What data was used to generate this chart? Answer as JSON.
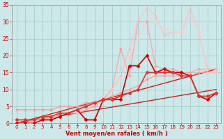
{
  "title": "",
  "xlabel": "Vent moyen/en rafales ( km/h )",
  "ylabel": "",
  "xlim": [
    -0.5,
    23.5
  ],
  "ylim": [
    0,
    35
  ],
  "xticks": [
    0,
    1,
    2,
    3,
    4,
    5,
    6,
    7,
    8,
    9,
    10,
    11,
    12,
    13,
    14,
    15,
    16,
    17,
    18,
    19,
    20,
    21,
    22,
    23
  ],
  "yticks": [
    0,
    5,
    10,
    15,
    20,
    25,
    30,
    35
  ],
  "bg_color": "#cce8e8",
  "grid_color": "#aacccc",
  "label_color": "#cc0000",
  "lines": [
    {
      "x": [
        0,
        23
      ],
      "y": [
        0,
        10
      ],
      "color": "#cc2222",
      "alpha": 1.0,
      "lw": 1.0,
      "marker": null
    },
    {
      "x": [
        0,
        23
      ],
      "y": [
        0,
        16
      ],
      "color": "#cc2222",
      "alpha": 1.0,
      "lw": 1.0,
      "marker": null
    },
    {
      "x": [
        0,
        1,
        2,
        3,
        4,
        5,
        6,
        7,
        8,
        9,
        10,
        11,
        12,
        13,
        14,
        15,
        16,
        17,
        18,
        19,
        20,
        21,
        22,
        23
      ],
      "y": [
        4,
        4,
        4,
        4,
        4,
        5,
        5,
        5,
        6,
        6,
        7,
        8,
        9,
        10,
        11,
        13,
        14,
        14,
        14,
        14,
        14,
        15,
        15,
        15
      ],
      "color": "#ff9999",
      "alpha": 0.9,
      "lw": 1.0,
      "marker": "D",
      "ms": 2.0
    },
    {
      "x": [
        0,
        1,
        2,
        3,
        4,
        5,
        6,
        7,
        8,
        9,
        10,
        11,
        12,
        13,
        14,
        15,
        16,
        17,
        18,
        19,
        20,
        21,
        22,
        23
      ],
      "y": [
        0,
        0,
        1,
        1,
        2,
        2,
        3,
        3,
        4,
        5,
        7,
        10,
        22,
        14,
        30,
        30,
        17,
        16,
        16,
        15,
        15,
        16,
        16,
        16
      ],
      "color": "#ff9999",
      "alpha": 0.75,
      "lw": 1.0,
      "marker": "D",
      "ms": 2.0
    },
    {
      "x": [
        0,
        1,
        2,
        3,
        4,
        5,
        6,
        7,
        8,
        9,
        10,
        11,
        12,
        13,
        14,
        15,
        16,
        17,
        18,
        19,
        20,
        21,
        22,
        23
      ],
      "y": [
        0,
        0,
        1,
        1,
        2,
        2,
        3,
        3,
        5,
        6,
        8,
        10,
        14,
        22,
        30,
        34,
        32,
        26,
        27,
        27,
        34,
        27,
        16,
        16
      ],
      "color": "#ffbbbb",
      "alpha": 0.7,
      "lw": 1.0,
      "marker": "D",
      "ms": 2.0
    },
    {
      "x": [
        0,
        1,
        2,
        3,
        4,
        5,
        6,
        7,
        8,
        9,
        10,
        11,
        12,
        13,
        14,
        15,
        16,
        17,
        18,
        19,
        20,
        21,
        22,
        23
      ],
      "y": [
        0,
        0,
        1,
        1,
        2,
        2,
        3,
        4,
        5,
        6,
        8,
        10,
        13,
        20,
        25,
        31,
        30,
        28,
        27,
        27,
        32,
        27,
        15,
        15
      ],
      "color": "#ffcccc",
      "alpha": 0.65,
      "lw": 1.0,
      "marker": "D",
      "ms": 2.0
    },
    {
      "x": [
        0,
        1,
        2,
        3,
        4,
        5,
        6,
        7,
        8,
        9,
        10,
        11,
        12,
        13,
        14,
        15,
        16,
        17,
        18,
        19,
        20,
        21,
        22,
        23
      ],
      "y": [
        0,
        0,
        0,
        1,
        1,
        2,
        3,
        4,
        1,
        1,
        7,
        7,
        7,
        17,
        17,
        20,
        15,
        16,
        15,
        15,
        14,
        8,
        7,
        9
      ],
      "color": "#cc0000",
      "alpha": 1.0,
      "lw": 1.2,
      "marker": "D",
      "ms": 2.5
    },
    {
      "x": [
        0,
        1,
        2,
        3,
        4,
        5,
        6,
        7,
        8,
        9,
        10,
        11,
        12,
        13,
        14,
        15,
        16,
        17,
        18,
        19,
        20,
        21,
        22,
        23
      ],
      "y": [
        1,
        1,
        1,
        2,
        2,
        3,
        3,
        4,
        5,
        6,
        7,
        7,
        8,
        9,
        10,
        15,
        15,
        15,
        15,
        14,
        14,
        8,
        8,
        9
      ],
      "color": "#dd3333",
      "alpha": 1.0,
      "lw": 1.2,
      "marker": "D",
      "ms": 2.5
    }
  ]
}
